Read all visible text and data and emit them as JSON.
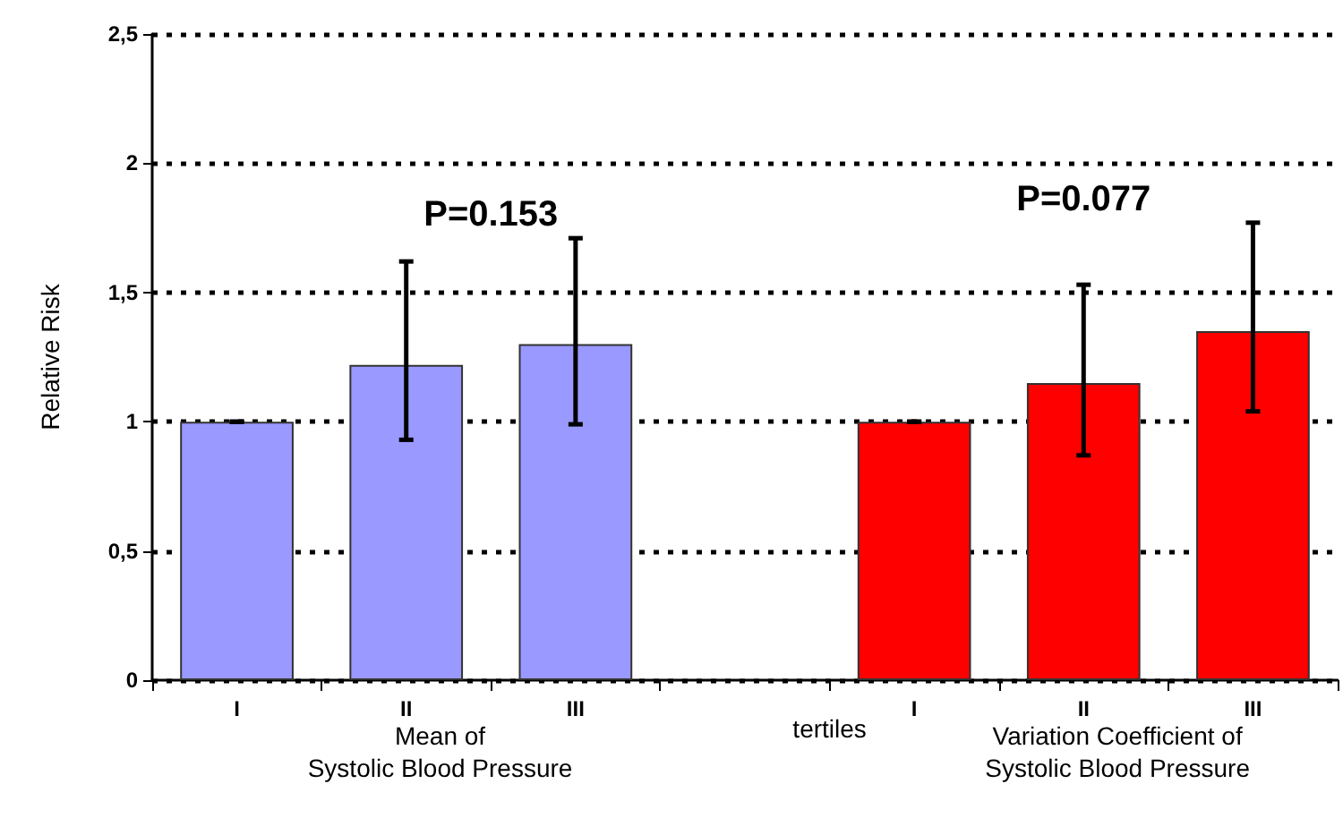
{
  "chart_data": {
    "type": "bar",
    "ylabel": "Relative Risk",
    "categories": [
      "I",
      "II",
      "III",
      null,
      "I",
      "II",
      "III"
    ],
    "series": [
      {
        "color": "#9999ff",
        "values": [
          1.0,
          1.22,
          1.3,
          null,
          null,
          null,
          null
        ],
        "errors": [
          [
            1.0,
            1.0
          ],
          [
            0.93,
            1.62
          ],
          [
            0.99,
            1.71
          ],
          null,
          null,
          null,
          null
        ]
      },
      {
        "color": "#ff0000",
        "values": [
          null,
          null,
          null,
          null,
          1.0,
          1.15,
          1.35
        ],
        "errors": [
          null,
          null,
          null,
          null,
          [
            1.0,
            1.0
          ],
          [
            0.87,
            1.53
          ],
          [
            1.04,
            1.77
          ]
        ]
      }
    ],
    "ylim": [
      0,
      2.5
    ],
    "yticks": [
      0,
      {
        "value": 0.5,
        "label": "0,5"
      },
      1,
      {
        "value": 1.5,
        "label": "1,5"
      },
      2,
      {
        "value": 2.5,
        "label": "2,5"
      }
    ],
    "grid": "y",
    "annotations": [
      "P=0.153",
      "P=0.077",
      "Mean of\nSystolic Blood Pressure",
      "tertiles",
      "Variation Coefficient of\nSystolic Blood Pressure"
    ]
  }
}
